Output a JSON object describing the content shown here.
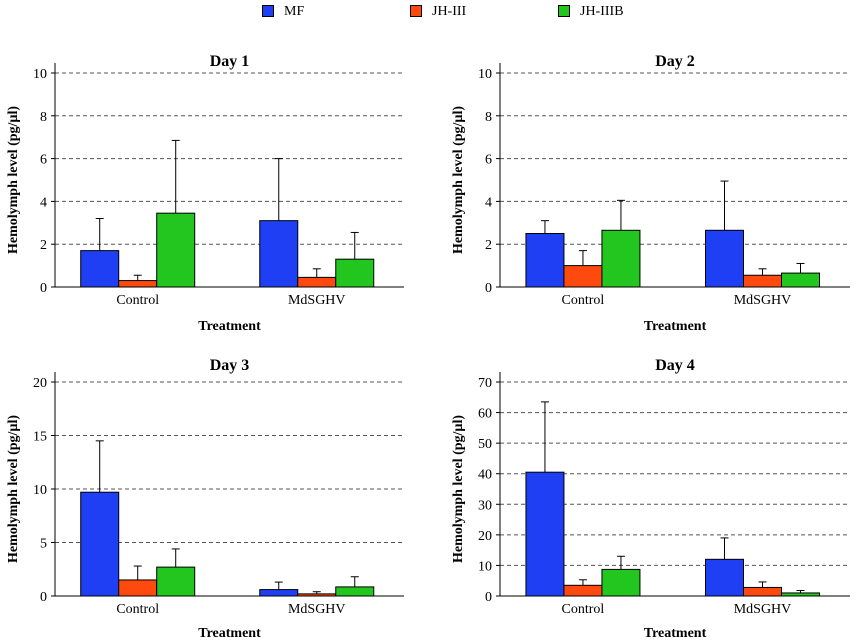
{
  "legend": [
    {
      "label": "MF",
      "color": "#1f3ff5"
    },
    {
      "label": "JH-III",
      "color": "#ff4a0f"
    },
    {
      "label": "JH-IIIB",
      "color": "#22c61f"
    }
  ],
  "chart_data": [
    {
      "type": "bar",
      "title": "Day 1",
      "xlabel": "Treatment",
      "ylabel": "Hemolymph level (pg/µl)",
      "categories": [
        "Control",
        "MdSGHV"
      ],
      "ylim": [
        0,
        10
      ],
      "yticks": [
        0,
        2,
        4,
        6,
        8,
        10
      ],
      "grid": true,
      "series": [
        {
          "name": "MF",
          "values": [
            1.7,
            3.1
          ],
          "errors": [
            1.5,
            2.9
          ]
        },
        {
          "name": "JH-III",
          "values": [
            0.3,
            0.45
          ],
          "errors": [
            0.25,
            0.4
          ]
        },
        {
          "name": "JH-IIIB",
          "values": [
            3.45,
            1.3
          ],
          "errors": [
            3.4,
            1.25
          ]
        }
      ]
    },
    {
      "type": "bar",
      "title": "Day 2",
      "xlabel": "Treatment",
      "ylabel": "Hemolymph level (pg/µl)",
      "categories": [
        "Control",
        "MdSGHV"
      ],
      "ylim": [
        0,
        10
      ],
      "yticks": [
        0,
        2,
        4,
        6,
        8,
        10
      ],
      "grid": true,
      "series": [
        {
          "name": "MF",
          "values": [
            2.5,
            2.65
          ],
          "errors": [
            0.6,
            2.3
          ]
        },
        {
          "name": "JH-III",
          "values": [
            1.0,
            0.55
          ],
          "errors": [
            0.7,
            0.3
          ]
        },
        {
          "name": "JH-IIIB",
          "values": [
            2.65,
            0.65
          ],
          "errors": [
            1.4,
            0.45
          ]
        }
      ]
    },
    {
      "type": "bar",
      "title": "Day 3",
      "xlabel": "Treatment",
      "ylabel": "Hemolymph level (pg/µl)",
      "categories": [
        "Control",
        "MdSGHV"
      ],
      "ylim": [
        0,
        20
      ],
      "yticks": [
        0,
        5,
        10,
        15,
        20
      ],
      "grid": true,
      "series": [
        {
          "name": "MF",
          "values": [
            9.7,
            0.6
          ],
          "errors": [
            4.8,
            0.7
          ]
        },
        {
          "name": "JH-III",
          "values": [
            1.5,
            0.2
          ],
          "errors": [
            1.3,
            0.2
          ]
        },
        {
          "name": "JH-IIIB",
          "values": [
            2.7,
            0.85
          ],
          "errors": [
            1.7,
            0.95
          ]
        }
      ]
    },
    {
      "type": "bar",
      "title": "Day 4",
      "xlabel": "Treatment",
      "ylabel": "Hemolymph level (pg/µl)",
      "categories": [
        "Control",
        "MdSGHV"
      ],
      "ylim": [
        0,
        70
      ],
      "yticks": [
        0,
        10,
        20,
        30,
        40,
        50,
        60,
        70
      ],
      "grid": true,
      "series": [
        {
          "name": "MF",
          "values": [
            40.5,
            12.0
          ],
          "errors": [
            23.0,
            7.0
          ]
        },
        {
          "name": "JH-III",
          "values": [
            3.5,
            2.8
          ],
          "errors": [
            1.8,
            1.8
          ]
        },
        {
          "name": "JH-IIIB",
          "values": [
            8.7,
            1.0
          ],
          "errors": [
            4.3,
            0.8
          ]
        }
      ]
    }
  ]
}
